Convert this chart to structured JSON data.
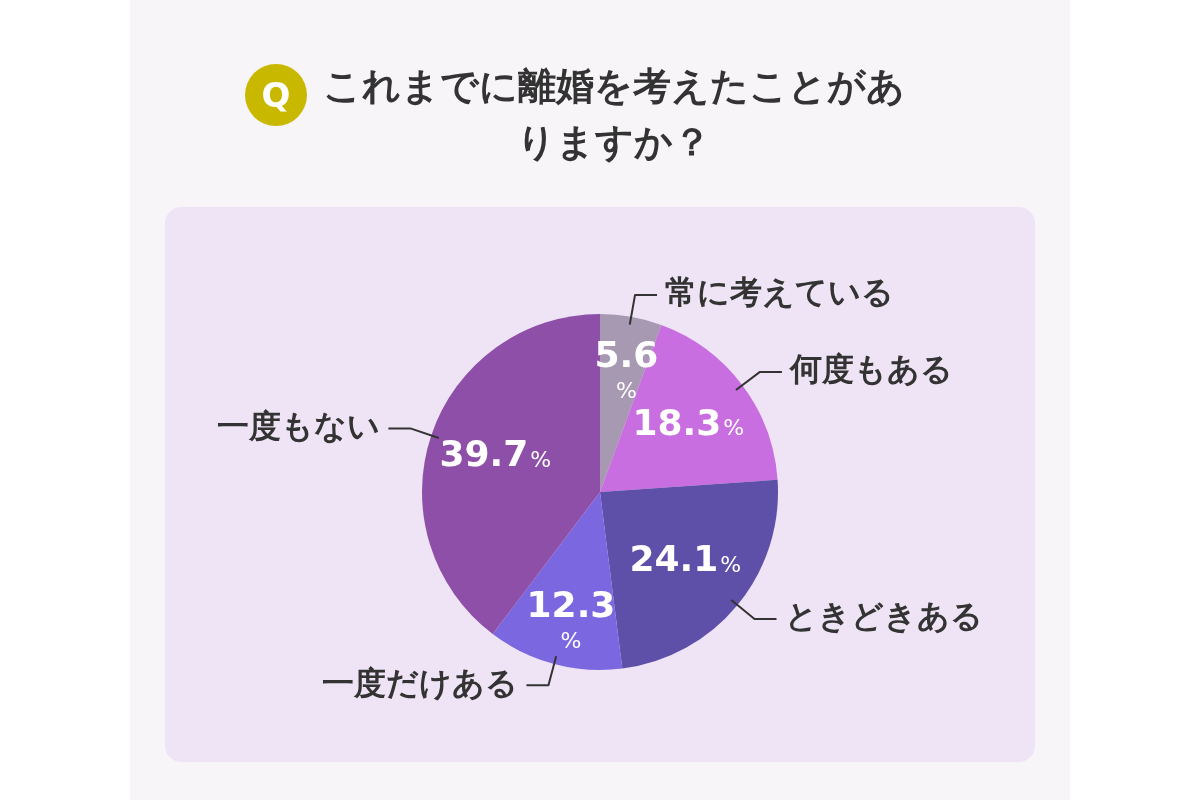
{
  "chart_data": {
    "type": "pie",
    "title": "これまでに離婚を考えたことがありますか？",
    "annotations": [
      "Q"
    ],
    "categories": [
      "常に考えている",
      "何度もある",
      "ときどきある",
      "一度だけある",
      "一度もない"
    ],
    "values": [
      5.6,
      18.3,
      24.1,
      12.3,
      39.7
    ],
    "colors": [
      "#a899b3",
      "#c86ee0",
      "#5e4fa8",
      "#7b68e0",
      "#8e4fa8"
    ],
    "value_labels": [
      "5.6%",
      "18.3%",
      "24.1%",
      "12.3%",
      "39.7%"
    ],
    "legend": false
  }
}
